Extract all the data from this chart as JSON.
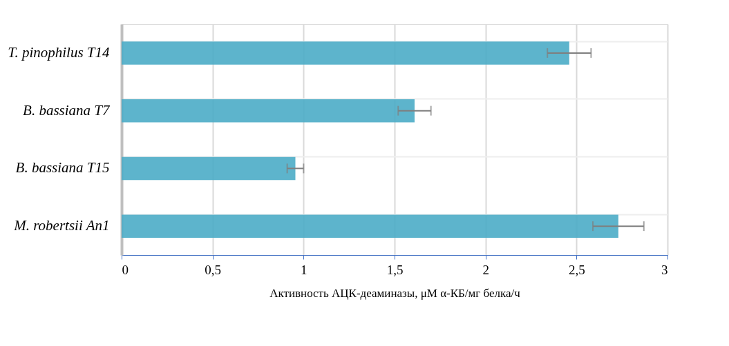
{
  "chart_data": {
    "type": "bar",
    "orientation": "horizontal",
    "categories": [
      "T. pinophilus T14",
      "B. bassiana T7",
      "B. bassiana T15",
      "M. robertsii  An1"
    ],
    "values": [
      2.46,
      1.61,
      0.955,
      2.73
    ],
    "errors": [
      0.12,
      0.09,
      0.045,
      0.14
    ],
    "color": "#4bacc6",
    "xlim": [
      0,
      3
    ],
    "xticks": [
      0,
      {
        "value": 0.5,
        "label": "0,5"
      },
      1,
      {
        "value": 1.5,
        "label": "1,5"
      },
      2,
      {
        "value": 2.5,
        "label": "2,5"
      },
      3
    ],
    "xlabel": "Активность АЦК-деаминазы, μM α-КБ/мг белка/ч",
    "grid": true
  }
}
